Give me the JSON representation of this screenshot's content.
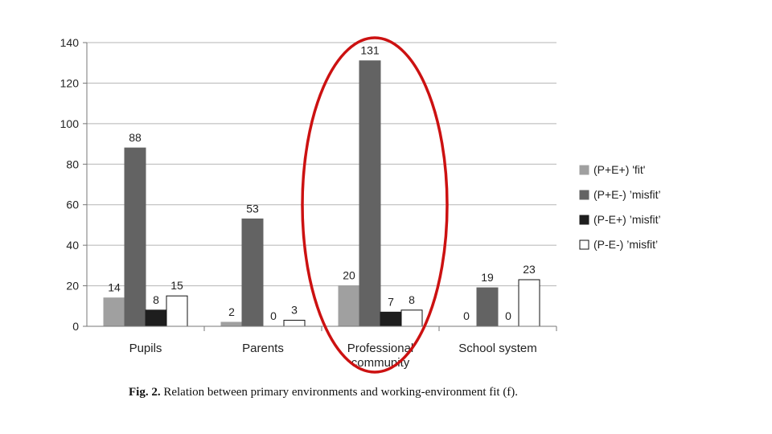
{
  "caption": {
    "label": "Fig. 2.",
    "text": "Relation between primary environments and working-environment fit (f)."
  },
  "colors": {
    "highlight": "#cc1111",
    "gridline": "#b5b5b5"
  },
  "annotation": {
    "shape": "ellipse",
    "highlights_category": "Professional community"
  },
  "chart_data": {
    "type": "bar",
    "title": "",
    "xlabel": "",
    "ylabel": "",
    "ylim": [
      0,
      140
    ],
    "yticks": [
      0,
      20,
      40,
      60,
      80,
      100,
      120,
      140
    ],
    "grid": true,
    "legend_position": "right",
    "categories": [
      "Pupils",
      "Parents",
      "Professional community",
      "School system"
    ],
    "category_label_lines": [
      [
        "Pupils"
      ],
      [
        "Parents"
      ],
      [
        "Professional",
        "community"
      ],
      [
        "School system"
      ]
    ],
    "series": [
      {
        "name": "(P+E+) 'fit'",
        "color": "#a0a0a0",
        "stroke": "#a0a0a0",
        "values": [
          14,
          2,
          20,
          0
        ]
      },
      {
        "name": "(P+E-) ’misfit’",
        "color": "#636363",
        "stroke": "#636363",
        "values": [
          88,
          53,
          131,
          19
        ]
      },
      {
        "name": "(P-E+) ’misfit’",
        "color": "#1e1e1e",
        "stroke": "#1e1e1e",
        "values": [
          8,
          0,
          7,
          0
        ]
      },
      {
        "name": "(P-E-) ’misfit’",
        "color": "#ffffff",
        "stroke": "#111111",
        "values": [
          15,
          3,
          8,
          23
        ]
      }
    ]
  }
}
